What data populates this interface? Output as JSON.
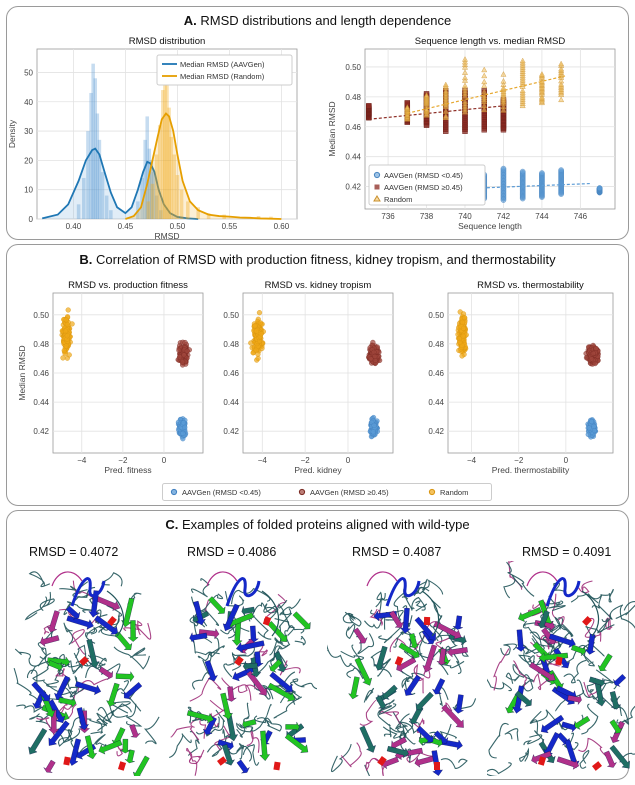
{
  "colors": {
    "aavgen_low": "#5b9bd5",
    "aavgen_low_line": "#1f77b4",
    "aavgen_high": "#8b2a22",
    "random": "#f0a818",
    "random_line": "#e69f00"
  },
  "panels": {
    "a": {
      "letter": "A.",
      "title": "RMSD distributions and length dependence"
    },
    "b": {
      "letter": "B.",
      "title": "Correlation of RMSD with production fitness, kidney tropism, and thermostability"
    },
    "c": {
      "letter": "C.",
      "title": "Examples of folded proteins aligned with wild-type"
    }
  },
  "chart_data": [
    {
      "id": "rmsd_distribution",
      "type": "area",
      "title": "RMSD distribution",
      "xlabel": "RMSD",
      "ylabel": "Density",
      "xlim": [
        0.365,
        0.615
      ],
      "ylim": [
        0,
        58
      ],
      "xticks": [
        "0.40",
        "0.45",
        "0.50",
        "0.55",
        "0.60"
      ],
      "xtick_values": [
        0.4,
        0.45,
        0.5,
        0.55,
        0.6
      ],
      "yticks": [
        "0",
        "10",
        "20",
        "30",
        "40",
        "50"
      ],
      "ytick_values": [
        0,
        10,
        20,
        30,
        40,
        50
      ],
      "legend": [
        "Median RMSD (AAVGen)",
        "Median RMSD (Random)"
      ],
      "series": [
        {
          "name": "Median RMSD (AAVGen)",
          "kde_x": [
            0.37,
            0.385,
            0.395,
            0.405,
            0.412,
            0.418,
            0.421,
            0.425,
            0.43,
            0.436,
            0.442,
            0.45,
            0.456,
            0.462,
            0.467,
            0.471,
            0.474,
            0.478,
            0.482,
            0.487,
            0.493,
            0.5,
            0.51,
            0.52
          ],
          "kde_y": [
            0.2,
            1.5,
            5,
            13,
            20,
            23.5,
            24,
            22,
            16,
            9,
            4,
            2,
            4,
            10,
            16,
            19.5,
            19,
            16,
            10,
            5,
            2,
            0.7,
            0.2,
            0
          ],
          "hist_x": [
            0.405,
            0.41,
            0.414,
            0.417,
            0.419,
            0.421,
            0.423,
            0.425,
            0.428,
            0.432,
            0.436,
            0.462,
            0.466,
            0.469,
            0.471,
            0.473,
            0.475,
            0.477,
            0.48,
            0.484
          ],
          "hist_y": [
            5,
            14,
            30,
            43,
            53,
            48,
            36,
            27,
            16,
            8,
            3,
            6,
            14,
            27,
            35,
            24,
            20,
            16,
            8,
            3
          ]
        },
        {
          "name": "Median RMSD (Random)",
          "kde_x": [
            0.45,
            0.458,
            0.465,
            0.471,
            0.476,
            0.481,
            0.485,
            0.489,
            0.492,
            0.496,
            0.5,
            0.505,
            0.512,
            0.52,
            0.53,
            0.54,
            0.55,
            0.56,
            0.57,
            0.58,
            0.59,
            0.6
          ],
          "kde_y": [
            0,
            1,
            4,
            12,
            20,
            28,
            34,
            36,
            35,
            30,
            22,
            13,
            6,
            3,
            1.5,
            1,
            0.8,
            0.5,
            0.4,
            0.2,
            0.1,
            0
          ],
          "hist_x": [
            0.472,
            0.476,
            0.48,
            0.483,
            0.486,
            0.488,
            0.49,
            0.492,
            0.494,
            0.497,
            0.5,
            0.504,
            0.51,
            0.52,
            0.53,
            0.545,
            0.578,
            0.59
          ],
          "hist_y": [
            6,
            12,
            22,
            32,
            44,
            55,
            46,
            38,
            28,
            22,
            15,
            10,
            6,
            4,
            2,
            1.5,
            1,
            0.8
          ]
        }
      ]
    },
    {
      "id": "length_vs_rmsd",
      "type": "scatter",
      "title": "Sequence length vs. median RMSD",
      "xlabel": "Sequence length",
      "ylabel": "Median RMSD",
      "xlim": [
        734.8,
        747.8
      ],
      "ylim": [
        0.405,
        0.512
      ],
      "xticks": [
        "736",
        "738",
        "740",
        "742",
        "744",
        "746"
      ],
      "xtick_values": [
        736,
        738,
        740,
        742,
        744,
        746
      ],
      "yticks": [
        "0.42",
        "0.44",
        "0.46",
        "0.48",
        "0.50"
      ],
      "ytick_values": [
        0.42,
        0.44,
        0.46,
        0.48,
        0.5
      ],
      "legend": [
        "AAVGen (RMSD <0.45)",
        "AAVGen (RMSD ≥0.45)",
        "Random"
      ],
      "series": [
        {
          "name": "AAVGen (RMSD <0.45)",
          "x": [
            739,
            740,
            741,
            742,
            743,
            744,
            745,
            747
          ],
          "y_low": [
            0.413,
            0.414,
            0.412,
            0.411,
            0.412,
            0.413,
            0.415,
            0.416
          ],
          "y_high": [
            0.425,
            0.426,
            0.428,
            0.432,
            0.43,
            0.429,
            0.431,
            0.419
          ],
          "trend": [
            [
              738.8,
              0.418
            ],
            [
              746.5,
              0.422
            ]
          ]
        },
        {
          "name": "AAVGen (RMSD ≥0.45)",
          "x": [
            735,
            737,
            738,
            739,
            740,
            741,
            742
          ],
          "y_low": [
            0.466,
            0.463,
            0.461,
            0.457,
            0.457,
            0.458,
            0.458
          ],
          "y_high": [
            0.474,
            0.476,
            0.482,
            0.484,
            0.484,
            0.484,
            0.478
          ],
          "trend": [
            [
              735,
              0.465
            ],
            [
              742,
              0.474
            ]
          ]
        },
        {
          "name": "Random",
          "x": [
            737,
            738,
            739,
            740,
            741,
            742,
            743,
            744,
            745
          ],
          "y_low": [
            0.465,
            0.467,
            0.466,
            0.468,
            0.47,
            0.471,
            0.474,
            0.476,
            0.478
          ],
          "y_high": [
            0.473,
            0.481,
            0.488,
            0.505,
            0.498,
            0.495,
            0.504,
            0.496,
            0.502
          ],
          "trend": [
            [
              737,
              0.469
            ],
            [
              745.2,
              0.494
            ]
          ]
        }
      ]
    },
    {
      "id": "rmsd_vs_fitness",
      "type": "scatter",
      "title": "RMSD vs. production fitness",
      "xlabel": "Pred. fitness",
      "ylabel": "Median RMSD",
      "xlim": [
        -5.4,
        1.9
      ],
      "ylim": [
        0.405,
        0.515
      ],
      "xticks": [
        "−4",
        "−2",
        "0"
      ],
      "xtick_values": [
        -4,
        -2,
        0
      ],
      "yticks": [
        "0.42",
        "0.44",
        "0.46",
        "0.48",
        "0.50"
      ],
      "ytick_values": [
        0.42,
        0.44,
        0.46,
        0.48,
        0.5
      ],
      "clusters": [
        {
          "name": "Random",
          "x": [
            -5.1,
            -4.4
          ],
          "y": [
            0.462,
            0.51
          ],
          "n": 140
        },
        {
          "name": "AAVGen (RMSD ≥0.45)",
          "x": [
            0.55,
            1.35
          ],
          "y": [
            0.461,
            0.484
          ],
          "n": 140
        },
        {
          "name": "AAVGen (RMSD <0.45)",
          "x": [
            0.6,
            1.2
          ],
          "y": [
            0.412,
            0.432
          ],
          "n": 110
        }
      ]
    },
    {
      "id": "rmsd_vs_kidney",
      "type": "scatter",
      "title": "RMSD vs. kidney tropism",
      "xlabel": "Pred. kidney",
      "ylabel": "",
      "xlim": [
        -4.9,
        2.1
      ],
      "ylim": [
        0.405,
        0.515
      ],
      "xticks": [
        "−4",
        "−2",
        "0"
      ],
      "xtick_values": [
        -4,
        -2,
        0
      ],
      "yticks": [
        "0.42",
        "0.44",
        "0.46",
        "0.48",
        "0.50"
      ],
      "ytick_values": [
        0.42,
        0.44,
        0.46,
        0.48,
        0.5
      ],
      "clusters": [
        {
          "name": "Random",
          "x": [
            -4.6,
            -3.8
          ],
          "y": [
            0.462,
            0.51
          ],
          "n": 140
        },
        {
          "name": "AAVGen (RMSD ≥0.45)",
          "x": [
            0.8,
            1.6
          ],
          "y": [
            0.461,
            0.484
          ],
          "n": 140
        },
        {
          "name": "AAVGen (RMSD <0.45)",
          "x": [
            0.9,
            1.5
          ],
          "y": [
            0.412,
            0.432
          ],
          "n": 110
        }
      ]
    },
    {
      "id": "rmsd_vs_thermostability",
      "type": "scatter",
      "title": "RMSD vs. thermostability",
      "xlabel": "Pred. thermostability",
      "ylabel": "",
      "xlim": [
        -5.0,
        2.0
      ],
      "ylim": [
        0.405,
        0.515
      ],
      "xticks": [
        "−4",
        "−2",
        "0"
      ],
      "xtick_values": [
        -4,
        -2,
        0
      ],
      "yticks": [
        "0.42",
        "0.44",
        "0.46",
        "0.48",
        "0.50"
      ],
      "ytick_values": [
        0.42,
        0.44,
        0.46,
        0.48,
        0.5
      ],
      "clusters": [
        {
          "name": "Random",
          "x": [
            -4.7,
            -4.1
          ],
          "y": [
            0.462,
            0.51
          ],
          "n": 140
        },
        {
          "name": "AAVGen (RMSD ≥0.45)",
          "x": [
            0.7,
            1.6
          ],
          "y": [
            0.461,
            0.484
          ],
          "n": 140
        },
        {
          "name": "AAVGen (RMSD <0.45)",
          "x": [
            0.8,
            1.4
          ],
          "y": [
            0.412,
            0.432
          ],
          "n": 110
        }
      ]
    }
  ],
  "shared_legend_b": [
    "AAVGen (RMSD <0.45)",
    "AAVGen (RMSD ≥0.45)",
    "Random"
  ],
  "proteins": [
    {
      "label": "RMSD = 0.4072"
    },
    {
      "label": "RMSD = 0.4086"
    },
    {
      "label": "RMSD = 0.4087"
    },
    {
      "label": "RMSD = 0.4091"
    }
  ]
}
